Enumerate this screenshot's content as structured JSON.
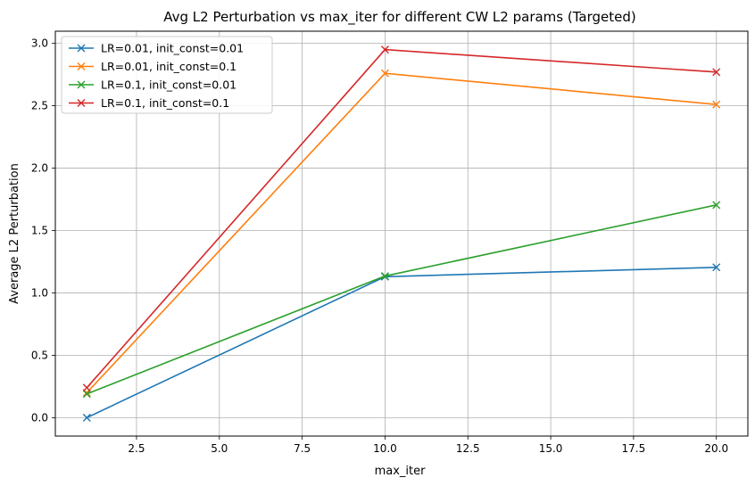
{
  "chart_data": {
    "type": "line",
    "title": "Avg L2 Perturbation vs max_iter for different CW L2 params (Targeted)",
    "xlabel": "max_iter",
    "ylabel": "Average L2 Perturbation",
    "x": [
      1,
      10,
      20
    ],
    "xlim": [
      0.05,
      20.95
    ],
    "ylim": [
      -0.1475,
      3.0975
    ],
    "xticks": [
      2.5,
      5.0,
      7.5,
      10.0,
      12.5,
      15.0,
      17.5,
      20.0
    ],
    "xtick_labels": [
      "2.5",
      "5.0",
      "7.5",
      "10.0",
      "12.5",
      "15.0",
      "17.5",
      "20.0"
    ],
    "yticks": [
      0.0,
      0.5,
      1.0,
      1.5,
      2.0,
      2.5,
      3.0
    ],
    "ytick_labels": [
      "0.0",
      "0.5",
      "1.0",
      "1.5",
      "2.0",
      "2.5",
      "3.0"
    ],
    "grid": true,
    "legend_position": "top-left",
    "marker": "x",
    "series": [
      {
        "name": "LR=0.01, init_const=0.01",
        "color": "#1f77b4",
        "values": [
          0.0,
          1.13,
          1.205
        ]
      },
      {
        "name": "LR=0.01, init_const=0.1",
        "color": "#ff7f0e",
        "values": [
          0.2,
          2.76,
          2.51
        ]
      },
      {
        "name": "LR=0.1, init_const=0.01",
        "color": "#2ca02c",
        "values": [
          0.19,
          1.135,
          1.705
        ]
      },
      {
        "name": "LR=0.1, init_const=0.1",
        "color": "#d62728",
        "values": [
          0.24,
          2.95,
          2.77
        ]
      }
    ]
  }
}
